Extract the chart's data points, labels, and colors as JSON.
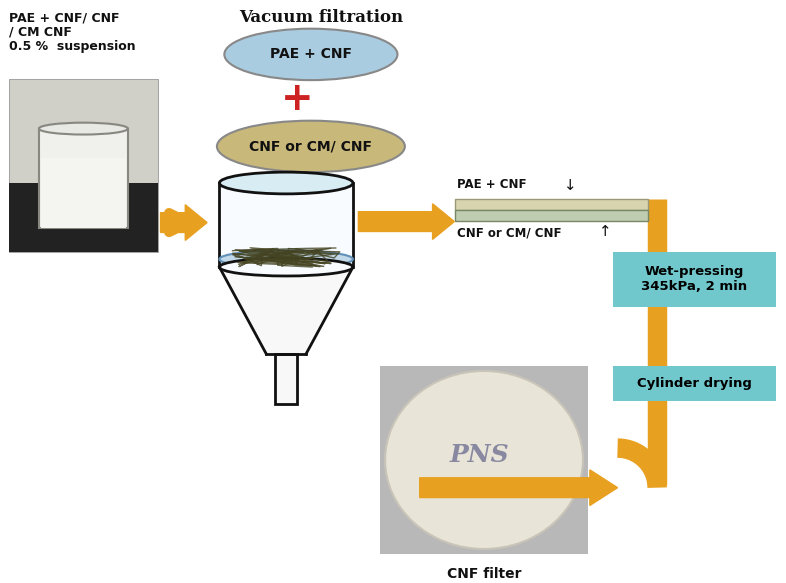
{
  "title": "Vacuum filtration",
  "background_color": "#ffffff",
  "ellipse1_text": "PAE + CNF",
  "ellipse1_color": "#aacce0",
  "ellipse1_edge": "#888888",
  "ellipse2_text": "CNF or CM/ CNF",
  "ellipse2_color": "#c8b87a",
  "ellipse2_edge": "#888888",
  "plus_color": "#cc2222",
  "arrow_color": "#e8a020",
  "box1_text": "Wet-pressing\n345kPa, 2 min",
  "box2_text": "Cylinder drying",
  "box_color": "#70c8cc",
  "label_top_left_line1": "PAE + CNF/ CNF",
  "label_top_left_line2": "/ CM CNF",
  "label_top_left_line3": "0.5 %  suspension",
  "label_pae_cnf": "PAE + CNF",
  "label_cnf_cm": "CNF or CM/ CNF",
  "label_cnf_filter": "CNF filter",
  "layer_color_top": "#d8d4b0",
  "layer_color_bot": "#c0ccb0",
  "text_color": "#111111",
  "funnel_color": "#ffffff",
  "funnel_edge": "#111111",
  "water_color": "#c0d8e8",
  "fiber_color": "#444422"
}
